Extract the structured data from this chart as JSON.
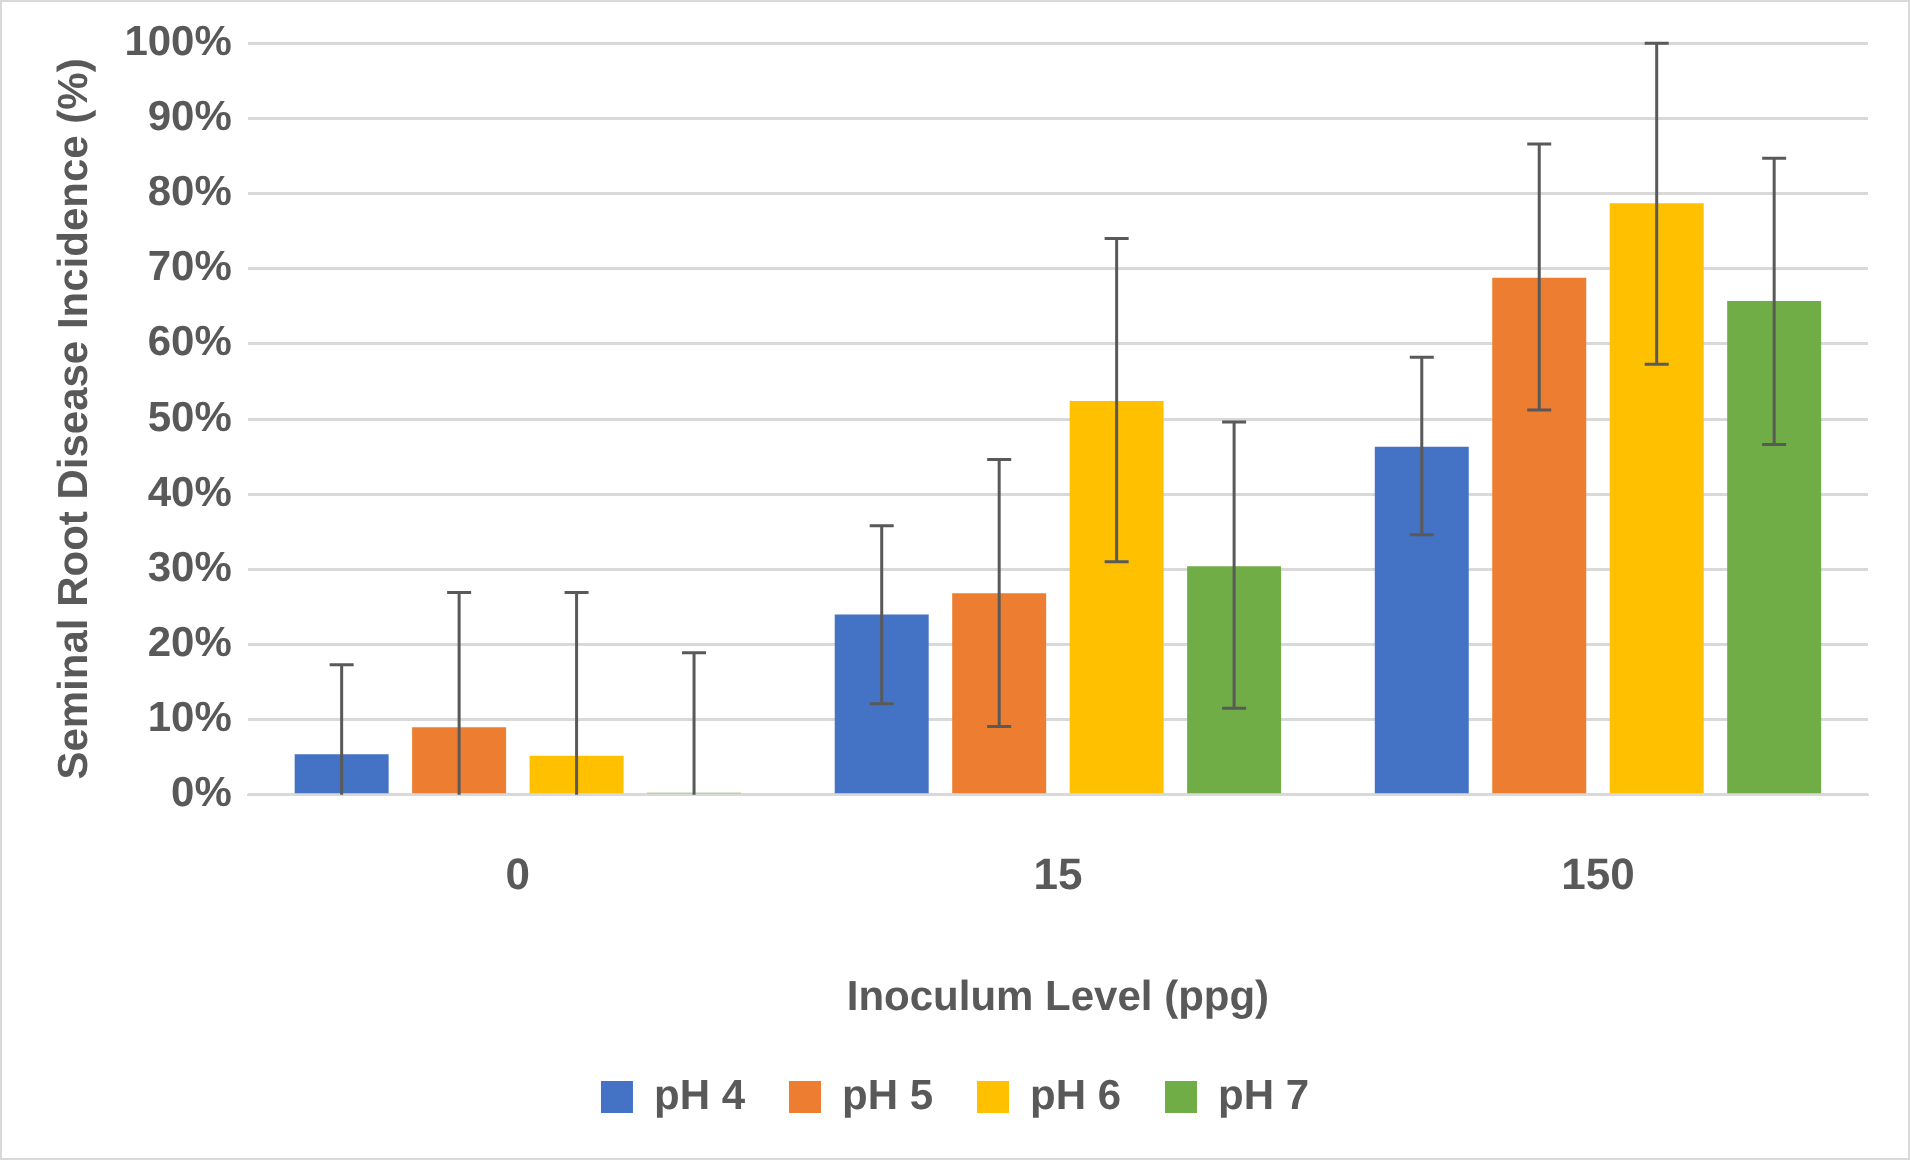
{
  "chart_data": {
    "type": "bar",
    "xlabel": "Inoculum Level (ppg)",
    "ylabel": "Seminal Root Disease Incidence (%)",
    "categories": [
      "0",
      "15",
      "150"
    ],
    "series": [
      {
        "name": "pH 4",
        "color": "#4472c4",
        "values": [
          5.4,
          24.0,
          46.3
        ],
        "errors": [
          [
            0,
            17.3
          ],
          [
            12.1,
            35.8
          ],
          [
            34.6,
            58.2
          ]
        ]
      },
      {
        "name": "pH 5",
        "color": "#ed7d31",
        "values": [
          9.0,
          26.8,
          68.8
        ],
        "errors": [
          [
            0,
            26.9
          ],
          [
            9.1,
            44.6
          ],
          [
            51.2,
            86.6
          ]
        ]
      },
      {
        "name": "pH 6",
        "color": "#ffc000",
        "values": [
          5.2,
          52.4,
          78.7
        ],
        "errors": [
          [
            0,
            26.9
          ],
          [
            31.0,
            74.0
          ],
          [
            57.3,
            100
          ]
        ]
      },
      {
        "name": "pH 7",
        "color": "#70ad47",
        "values": [
          0,
          30.4,
          65.7
        ],
        "errors": [
          [
            0,
            18.9
          ],
          [
            11.5,
            49.6
          ],
          [
            46.6,
            84.7
          ]
        ]
      }
    ],
    "ylim": [
      0,
      100
    ],
    "yticks": [
      {
        "value": 0,
        "label": "0%"
      },
      {
        "value": 10,
        "label": "10%"
      },
      {
        "value": 20,
        "label": "20%"
      },
      {
        "value": 30,
        "label": "30%"
      },
      {
        "value": 40,
        "label": "40%"
      },
      {
        "value": 50,
        "label": "50%"
      },
      {
        "value": 60,
        "label": "60%"
      },
      {
        "value": 70,
        "label": "70%"
      },
      {
        "value": 80,
        "label": "80%"
      },
      {
        "value": 90,
        "label": "90%"
      },
      {
        "value": 100,
        "label": "100%"
      }
    ],
    "grid": "y",
    "legend": "bottom"
  }
}
